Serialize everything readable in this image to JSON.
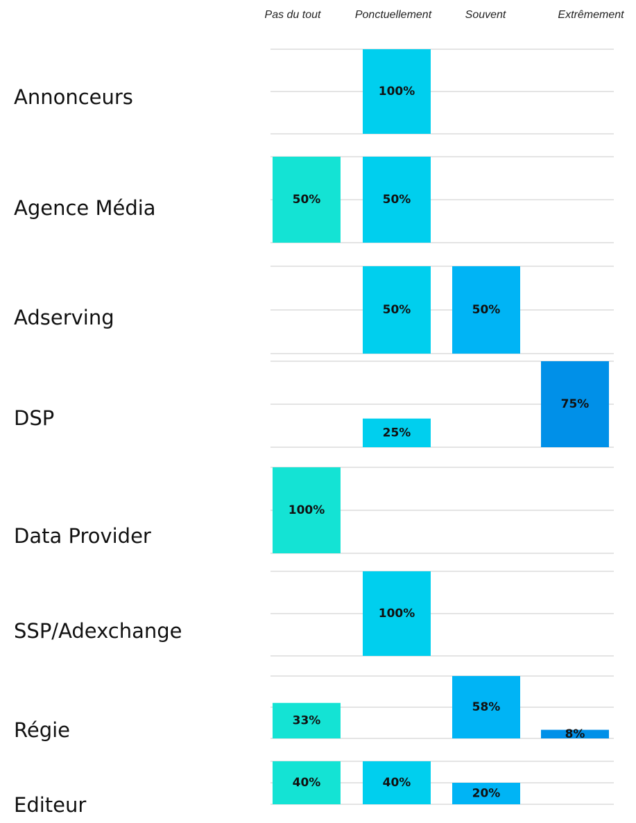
{
  "chart_data": {
    "type": "bar",
    "categories": [
      "Pas du tout",
      "Ponctuellement",
      "Souvent",
      "Extrêmement"
    ],
    "colors": [
      "#14e3d4",
      "#00cfee",
      "#00b4f5",
      "#0090e8"
    ],
    "series": [
      {
        "name": "Annonceurs",
        "values": [
          null,
          100,
          null,
          null
        ],
        "value_labels": [
          null,
          "100%",
          null,
          null
        ]
      },
      {
        "name": "Agence Média",
        "values": [
          50,
          50,
          null,
          null
        ],
        "value_labels": [
          "50%",
          "50%",
          null,
          null
        ]
      },
      {
        "name": "Adserving",
        "values": [
          null,
          50,
          50,
          null
        ],
        "value_labels": [
          null,
          "50%",
          "50%",
          null
        ]
      },
      {
        "name": "DSP",
        "values": [
          null,
          25,
          null,
          75
        ],
        "value_labels": [
          null,
          "25%",
          null,
          "75%"
        ]
      },
      {
        "name": "Data Provider",
        "values": [
          100,
          null,
          null,
          null
        ],
        "value_labels": [
          "100%",
          null,
          null,
          null
        ]
      },
      {
        "name": "SSP/Adexchange",
        "values": [
          null,
          100,
          null,
          null
        ],
        "value_labels": [
          null,
          "100%",
          null,
          null
        ]
      },
      {
        "name": "Régie",
        "values": [
          33,
          null,
          58,
          8
        ],
        "value_labels": [
          "33%",
          null,
          "58%",
          "8%"
        ]
      },
      {
        "name": "Editeur",
        "values": [
          40,
          40,
          20,
          null
        ],
        "value_labels": [
          "40%",
          "40%",
          "20%",
          null
        ]
      }
    ]
  }
}
